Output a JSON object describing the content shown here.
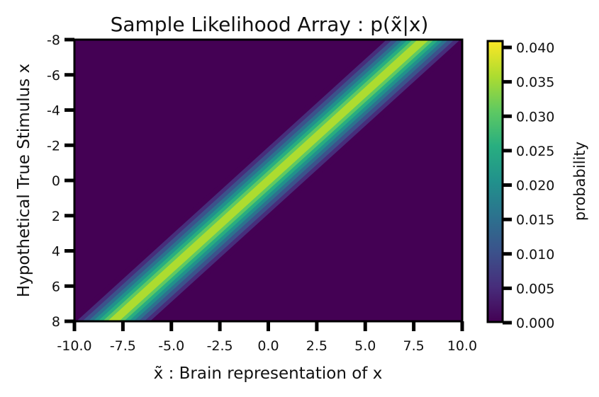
{
  "chart_data": {
    "type": "heatmap",
    "title": "Sample Likelihood Array : p(x̃|x)",
    "xlabel": "x̃ : Brain representation of x",
    "ylabel": "Hypothetical True Stimulus x",
    "xlim": [
      -10,
      10
    ],
    "ylim": [
      8,
      -8
    ],
    "xticks": [
      "-10.0",
      "-7.5",
      "-5.0",
      "-2.5",
      "0.0",
      "2.5",
      "5.0",
      "7.5",
      "10.0"
    ],
    "yticks": [
      "-8",
      "-6",
      "-4",
      "-2",
      "0",
      "2",
      "4",
      "6",
      "8"
    ],
    "model": {
      "kernel": "gaussian",
      "mean": "x̃ = -x",
      "sigma": 1.0
    },
    "colorbar": {
      "label": "probability",
      "range": [
        0,
        0.04
      ],
      "ticks": [
        "0.040",
        "0.035",
        "0.030",
        "0.025",
        "0.020",
        "0.015",
        "0.010",
        "0.005",
        "0.000"
      ],
      "colormap": "viridis"
    }
  }
}
